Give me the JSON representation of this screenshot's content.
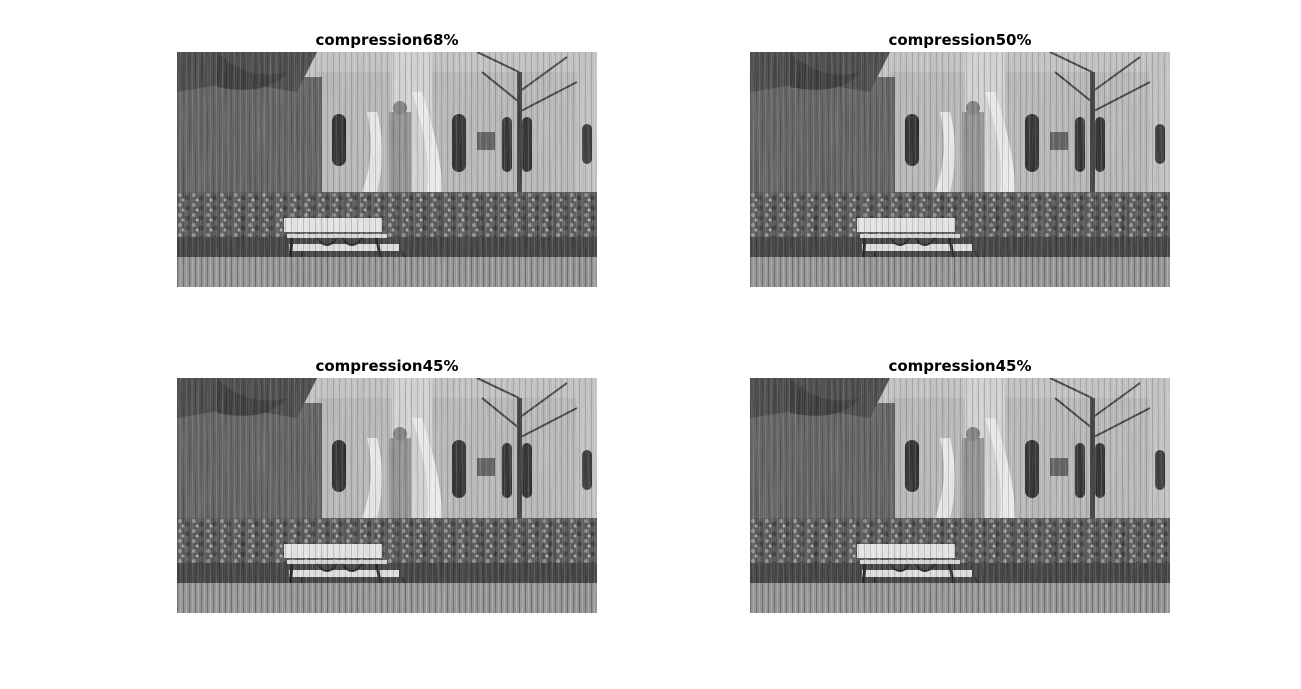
{
  "figure": {
    "panels": [
      {
        "title": "compression68%",
        "image": "grayscale park scene with bench, church and tree"
      },
      {
        "title": "compression50%",
        "image": "grayscale park scene with bench, church and tree"
      },
      {
        "title": "compression45%",
        "image": "grayscale park scene with bench, church and tree"
      },
      {
        "title": "compression45%",
        "image": "grayscale park scene with bench, church and tree"
      }
    ]
  }
}
